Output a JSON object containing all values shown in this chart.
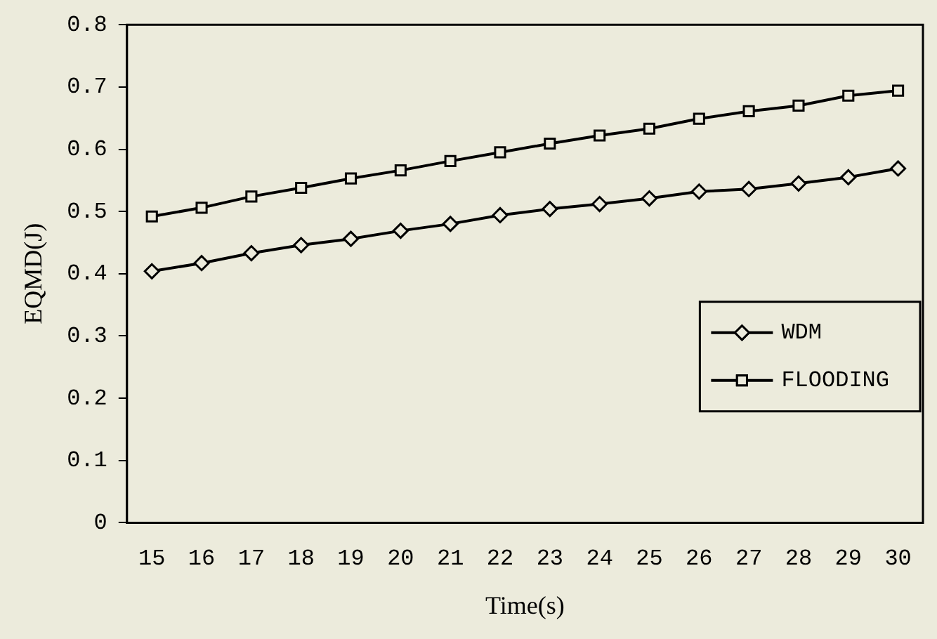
{
  "chart_data": {
    "type": "line",
    "xlabel": "Time(s)",
    "ylabel": "EQMD(J)",
    "categories": [
      "15",
      "16",
      "17",
      "18",
      "19",
      "20",
      "21",
      "22",
      "23",
      "24",
      "25",
      "26",
      "27",
      "28",
      "29",
      "30"
    ],
    "series": [
      {
        "name": "WDM",
        "color": "#000000",
        "marker": "diamond",
        "values": [
          0.404,
          0.417,
          0.433,
          0.446,
          0.456,
          0.469,
          0.48,
          0.494,
          0.504,
          0.512,
          0.521,
          0.532,
          0.536,
          0.545,
          0.555,
          0.569
        ]
      },
      {
        "name": "FLOODING",
        "color": "#000000",
        "marker": "square",
        "values": [
          0.492,
          0.506,
          0.524,
          0.538,
          0.553,
          0.566,
          0.581,
          0.595,
          0.609,
          0.622,
          0.633,
          0.649,
          0.661,
          0.67,
          0.686,
          0.694
        ]
      }
    ],
    "ylim": [
      0,
      0.8
    ],
    "yticks": [
      0,
      0.1,
      0.2,
      0.3,
      0.4,
      0.5,
      0.6,
      0.7,
      0.8
    ],
    "grid": false,
    "legend": "right",
    "line_style": "solid"
  }
}
